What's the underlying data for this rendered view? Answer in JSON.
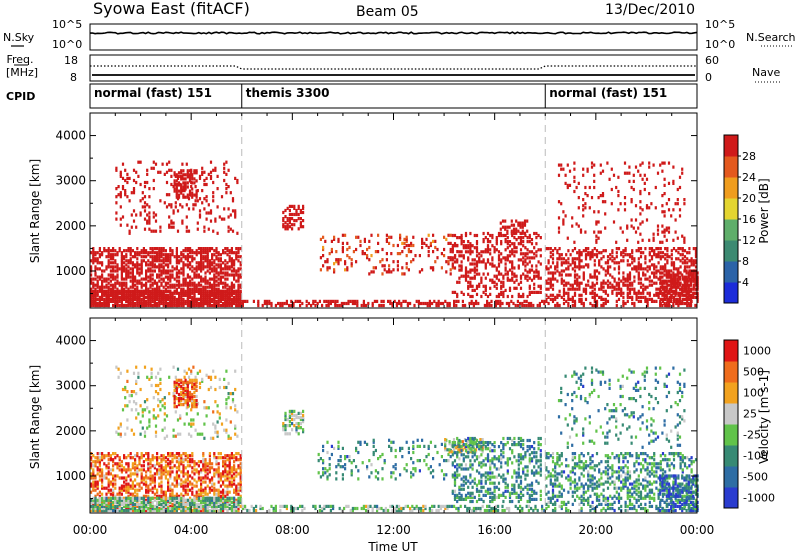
{
  "header": {
    "station": "Syowa East (fitACF)",
    "beam": "Beam 05",
    "date": "13/Dec/2010"
  },
  "status": {
    "nsky_label": "N.Sky",
    "nsearch_label": "N.Search",
    "nsky_ticks": [
      "10^5",
      "10^0"
    ],
    "nsearch_ticks": [
      "10^5",
      "10^0"
    ],
    "freq_label": "Freq.",
    "freq_unit": "[MHz]",
    "freq_ticks": [
      "18",
      "8"
    ],
    "nave_label": "Nave",
    "nave_ticks": [
      "60",
      "0"
    ],
    "cpid_label": "CPID",
    "modes": [
      {
        "label": "normal (fast) 151",
        "start_hour": 0,
        "end_hour": 6
      },
      {
        "label": "themis 3300",
        "start_hour": 6,
        "end_hour": 18
      },
      {
        "label": "normal (fast) 151",
        "start_hour": 18,
        "end_hour": 24
      }
    ]
  },
  "chart_data": [
    {
      "type": "heatmap",
      "panel": "power",
      "xlabel": "",
      "ylabel": "Slant Range [km]",
      "xlim": [
        0,
        24
      ],
      "ylim": [
        180,
        4500
      ],
      "yticks": [
        1000,
        2000,
        3000,
        4000
      ],
      "colorbar": {
        "label": "Power [dB]",
        "ticks": [
          "4",
          "8",
          "12",
          "16",
          "20",
          "24",
          "28"
        ],
        "range": [
          0,
          30
        ],
        "colors": [
          "#1c2cd9",
          "#2b63a8",
          "#3c8a72",
          "#5fae6a",
          "#e4d531",
          "#f09d1e",
          "#e4591e",
          "#cf1a1a"
        ]
      },
      "regions": [
        {
          "h0": 0.0,
          "h1": 6.0,
          "r0": 200,
          "r1": 1500,
          "value": 10,
          "density": 0.55
        },
        {
          "h0": 0.0,
          "h1": 6.0,
          "r0": 200,
          "r1": 550,
          "value": 20,
          "density": 0.85
        },
        {
          "h0": 1.0,
          "h1": 5.8,
          "r0": 1800,
          "r1": 3400,
          "value": 9,
          "density": 0.12
        },
        {
          "h0": 3.3,
          "h1": 4.2,
          "r0": 2600,
          "r1": 3200,
          "value": 20,
          "density": 0.55
        },
        {
          "h0": 6.0,
          "h1": 18.0,
          "r0": 200,
          "r1": 320,
          "value": 12,
          "density": 0.5
        },
        {
          "h0": 7.6,
          "h1": 8.4,
          "r0": 1900,
          "r1": 2400,
          "value": 12,
          "density": 0.45
        },
        {
          "h0": 9.0,
          "h1": 14.5,
          "r0": 900,
          "r1": 1800,
          "value": 7,
          "density": 0.14
        },
        {
          "h0": 14.3,
          "h1": 17.8,
          "r0": 400,
          "r1": 1800,
          "value": 12,
          "density": 0.3
        },
        {
          "h0": 16.2,
          "h1": 17.3,
          "r0": 1800,
          "r1": 2100,
          "value": 20,
          "density": 0.4
        },
        {
          "h0": 18.0,
          "h1": 24.0,
          "r0": 200,
          "r1": 1500,
          "value": 10,
          "density": 0.38
        },
        {
          "h0": 18.5,
          "h1": 23.5,
          "r0": 1600,
          "r1": 3400,
          "value": 9,
          "density": 0.1
        },
        {
          "h0": 22.5,
          "h1": 24.0,
          "r0": 200,
          "r1": 1000,
          "value": 18,
          "density": 0.6
        }
      ]
    },
    {
      "type": "heatmap",
      "panel": "velocity",
      "xlabel": "Time UT",
      "ylabel": "Slant Range [km]",
      "xlim": [
        0,
        24
      ],
      "ylim": [
        180,
        4500
      ],
      "xticks": [
        "00:00",
        "04:00",
        "08:00",
        "12:00",
        "16:00",
        "20:00",
        "00:00"
      ],
      "yticks": [
        1000,
        2000,
        3000,
        4000
      ],
      "colorbar": {
        "label": "Velocity [m s-1]",
        "ticks": [
          "1000",
          "500",
          "100",
          "25",
          "-25",
          "-100",
          "-500",
          "-1000"
        ],
        "colors": [
          "#2a3ccf",
          "#2e6da4",
          "#378a74",
          "#61c34a",
          "#c8c8c8",
          "#f2a21f",
          "#ef6c1c",
          "#e01515"
        ]
      },
      "regions": [
        {
          "h0": 0.0,
          "h1": 6.0,
          "r0": 200,
          "r1": 1500,
          "value": 6,
          "density": 0.5
        },
        {
          "h0": 0.0,
          "h1": 6.0,
          "r0": 200,
          "r1": 500,
          "value": 3,
          "density": 0.8
        },
        {
          "h0": 1.0,
          "h1": 5.8,
          "r0": 1800,
          "r1": 3400,
          "value": 4,
          "density": 0.12
        },
        {
          "h0": 3.3,
          "h1": 4.2,
          "r0": 2500,
          "r1": 3100,
          "value": 6,
          "density": 0.6
        },
        {
          "h0": 6.0,
          "h1": 18.0,
          "r0": 200,
          "r1": 320,
          "value": 3,
          "density": 0.45
        },
        {
          "h0": 7.6,
          "h1": 8.4,
          "r0": 1900,
          "r1": 2400,
          "value": 3,
          "density": 0.45
        },
        {
          "h0": 9.0,
          "h1": 14.5,
          "r0": 900,
          "r1": 1800,
          "value": 2,
          "density": 0.14
        },
        {
          "h0": 14.0,
          "h1": 15.5,
          "r0": 1500,
          "r1": 1800,
          "value": 4,
          "density": 0.5
        },
        {
          "h0": 14.3,
          "h1": 17.8,
          "r0": 400,
          "r1": 1800,
          "value": 2,
          "density": 0.3
        },
        {
          "h0": 18.0,
          "h1": 24.0,
          "r0": 200,
          "r1": 1500,
          "value": 2,
          "density": 0.35
        },
        {
          "h0": 18.5,
          "h1": 23.5,
          "r0": 1600,
          "r1": 3400,
          "value": 2,
          "density": 0.1
        },
        {
          "h0": 22.5,
          "h1": 24.0,
          "r0": 200,
          "r1": 1000,
          "value": 1,
          "density": 0.55
        }
      ]
    }
  ]
}
